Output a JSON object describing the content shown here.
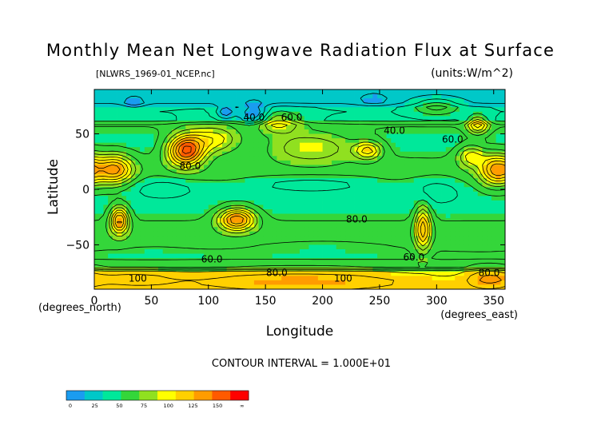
{
  "chart_data": {
    "type": "heatmap",
    "title": "Monthly Mean Net Longwave Radiation Flux at Surface",
    "source_file": "[NLWRS_1969-01_NCEP.nc]",
    "units": "(units:W/m^2)",
    "xlabel": "Longitude",
    "ylabel": "Latitude",
    "x_units_label": "(degrees_east)",
    "y_units_label": "(degrees_north)",
    "xlim": [
      0,
      360
    ],
    "ylim": [
      -90,
      90
    ],
    "x_ticks": [
      0,
      50,
      100,
      150,
      200,
      250,
      300,
      350
    ],
    "y_ticks": [
      50,
      0,
      -50
    ],
    "contour_interval": "CONTOUR INTERVAL = 1.000E+01",
    "contour_labels": [
      {
        "text": "40.0",
        "lon": 140,
        "lat": 62
      },
      {
        "text": "60.0",
        "lon": 173,
        "lat": 62
      },
      {
        "text": "40.0",
        "lon": 263,
        "lat": 50
      },
      {
        "text": "60.0",
        "lon": 314,
        "lat": 42
      },
      {
        "text": "80.0",
        "lon": 84,
        "lat": 18
      },
      {
        "text": "80.0",
        "lon": 230,
        "lat": -30
      },
      {
        "text": "60.0",
        "lon": 103,
        "lat": -66
      },
      {
        "text": "60.0",
        "lon": 280,
        "lat": -64
      },
      {
        "text": "80.0",
        "lon": 160,
        "lat": -78
      },
      {
        "text": "100",
        "lon": 38,
        "lat": -83
      },
      {
        "text": "100",
        "lon": 218,
        "lat": -83
      },
      {
        "text": "80.0",
        "lon": 346,
        "lat": -78
      }
    ],
    "colorbar": {
      "ticks": [
        "0",
        "25",
        "50",
        "75",
        "100",
        "125",
        "150",
        "∞"
      ],
      "colors": [
        "#1a9cf0",
        "#00c8c8",
        "#00e89a",
        "#34d63a",
        "#90e020",
        "#ffff00",
        "#ffd000",
        "#ff9c00",
        "#ff5a00",
        "#ff0000"
      ]
    },
    "value_regions": [
      {
        "lon": 80,
        "lat": 35,
        "rlon": 16,
        "rlat": 14,
        "value": 140
      },
      {
        "lon": 18,
        "lat": 18,
        "rlon": 16,
        "rlat": 13,
        "value": 125
      },
      {
        "lon": 352,
        "lat": 18,
        "rlon": 14,
        "rlat": 14,
        "value": 125
      },
      {
        "lon": 125,
        "lat": -27,
        "rlon": 16,
        "rlat": 10,
        "value": 130
      },
      {
        "lon": 22,
        "lat": -28,
        "rlon": 8,
        "rlat": 12,
        "value": 125
      },
      {
        "lon": 288,
        "lat": -35,
        "rlon": 7,
        "rlat": 20,
        "value": 118
      },
      {
        "lon": 336,
        "lat": 58,
        "rlon": 9,
        "rlat": 8,
        "value": 108
      },
      {
        "lon": 240,
        "lat": 35,
        "rlon": 12,
        "rlat": 8,
        "value": 100
      },
      {
        "lon": 330,
        "lat": 30,
        "rlon": 12,
        "rlat": 10,
        "value": 95
      },
      {
        "lon": 190,
        "lat": 38,
        "rlon": 40,
        "rlat": 14,
        "value": 90
      },
      {
        "lon": 160,
        "lat": 60,
        "rlon": 20,
        "rlat": 10,
        "value": 95
      },
      {
        "lon": 105,
        "lat": 45,
        "rlon": 22,
        "rlat": 12,
        "value": 95
      },
      {
        "lon": 180,
        "lat": -82,
        "rlon": 120,
        "rlat": 10,
        "value": 120
      },
      {
        "lon": 345,
        "lat": -80,
        "rlon": 20,
        "rlat": 10,
        "value": 115
      },
      {
        "lon": 30,
        "lat": -80,
        "rlon": 40,
        "rlat": 8,
        "value": 110
      },
      {
        "lon": 140,
        "lat": 68,
        "rlon": 12,
        "rlat": 10,
        "value": 15
      },
      {
        "lon": 115,
        "lat": 70,
        "rlon": 8,
        "rlat": 6,
        "value": 20
      },
      {
        "lon": 35,
        "lat": 78,
        "rlon": 10,
        "rlat": 5,
        "value": 20
      },
      {
        "lon": 245,
        "lat": 80,
        "rlon": 16,
        "rlat": 6,
        "value": 25
      },
      {
        "lon": 190,
        "lat": 5,
        "rlon": 60,
        "rlat": 8,
        "value": 45
      },
      {
        "lon": 60,
        "lat": 2,
        "rlon": 35,
        "rlat": 10,
        "value": 45
      },
      {
        "lon": 300,
        "lat": 0,
        "rlon": 25,
        "rlat": 12,
        "value": 45
      },
      {
        "lon": 200,
        "lat": -50,
        "rlon": 80,
        "rlat": 8,
        "value": 58
      },
      {
        "lon": 50,
        "lat": -55,
        "rlon": 40,
        "rlat": 8,
        "value": 58
      },
      {
        "lon": 300,
        "lat": 75,
        "rlon": 20,
        "rlat": 8,
        "value": 75
      }
    ]
  }
}
